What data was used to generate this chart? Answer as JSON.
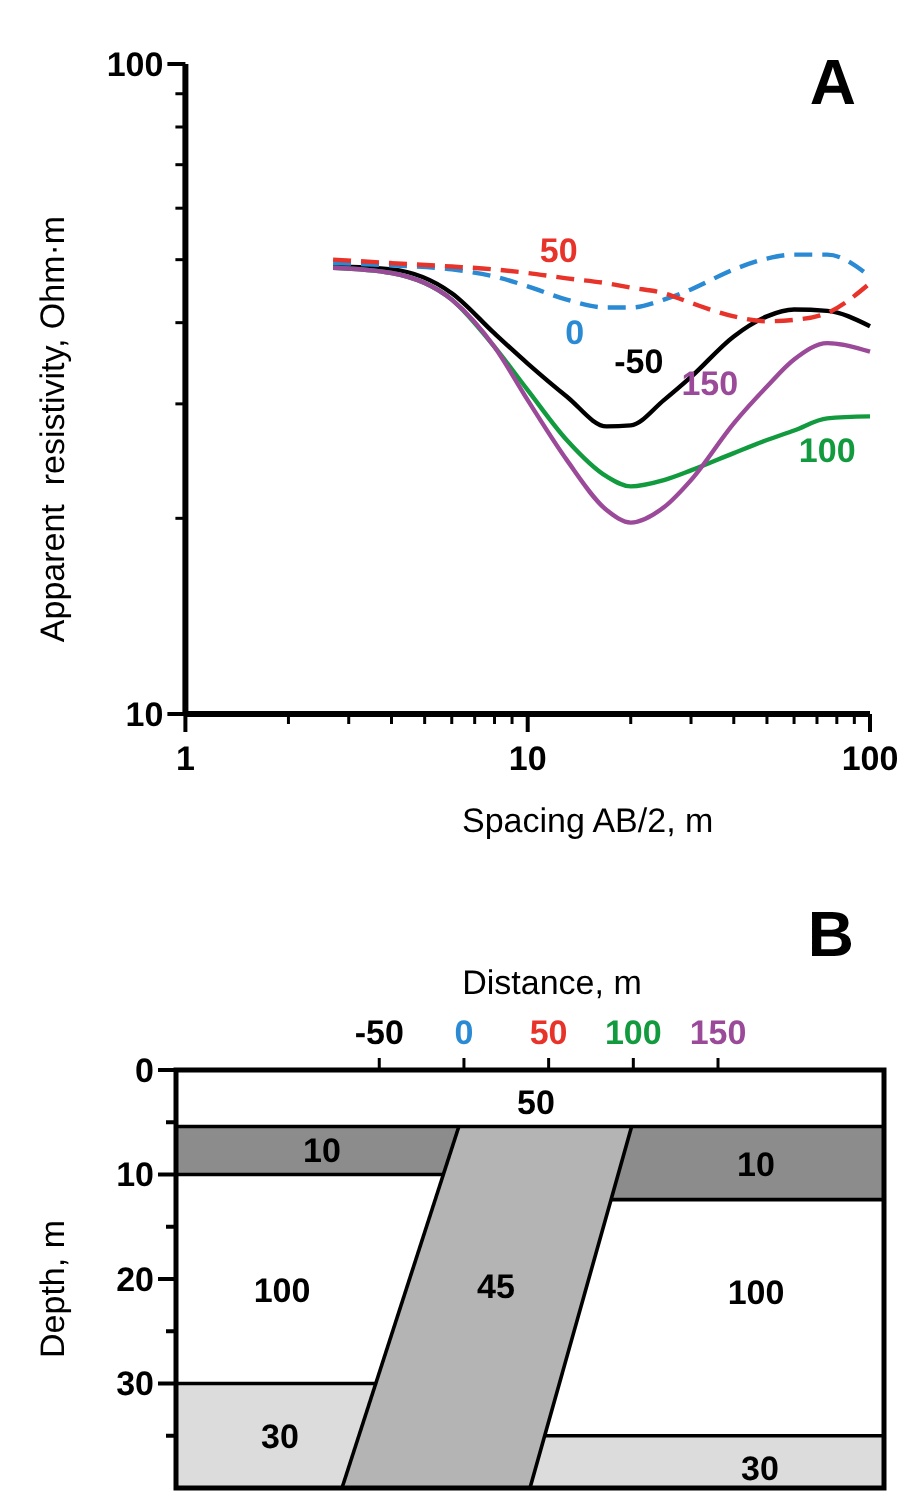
{
  "chart_data": [
    {
      "type": "line",
      "title": "A",
      "xlabel": "Spacing AB/2, m",
      "ylabel": "Apparent  resistivity, Ohm·m",
      "log": "xy",
      "xlim": [
        1,
        100
      ],
      "ylim": [
        10,
        100
      ],
      "xticks": [
        1,
        10,
        100
      ],
      "yticks": [
        10,
        100
      ],
      "grid": false,
      "legend": false,
      "x": [
        2.7,
        4,
        6,
        8,
        10,
        13,
        17,
        20,
        25,
        30,
        40,
        50,
        60,
        75,
        100
      ],
      "series": [
        {
          "name": "-50",
          "color": "#000000",
          "line_style": "solid",
          "values": [
            48.8,
            48.3,
            44.4,
            38.5,
            34.6,
            30.8,
            27.7,
            27.8,
            30.4,
            33.0,
            38.1,
            40.9,
            41.9,
            41.7,
            39.5
          ]
        },
        {
          "name": "0",
          "color": "#2a8ad4",
          "line_style": "dashed",
          "values": [
            49.4,
            49.0,
            48.3,
            47.1,
            45.5,
            43.4,
            42.2,
            42.2,
            43.4,
            45.0,
            48.3,
            50.2,
            50.9,
            50.9,
            47.1
          ]
        },
        {
          "name": "50",
          "color": "#e8332a",
          "line_style": "dashed",
          "values": [
            50.0,
            49.4,
            48.8,
            48.3,
            47.7,
            46.8,
            46.0,
            45.3,
            44.4,
            42.9,
            40.9,
            40.2,
            40.4,
            41.4,
            46.0
          ]
        },
        {
          "name": "100",
          "color": "#129a3e",
          "line_style": "solid",
          "values": [
            48.6,
            47.7,
            43.4,
            36.7,
            31.5,
            26.4,
            23.2,
            22.4,
            22.9,
            23.7,
            25.2,
            26.4,
            27.3,
            28.5,
            28.7
          ]
        },
        {
          "name": "150",
          "color": "#9b4a9a",
          "line_style": "solid",
          "values": [
            48.6,
            47.7,
            43.4,
            36.7,
            30.4,
            24.6,
            20.6,
            19.7,
            20.8,
            22.9,
            28.0,
            31.9,
            35.1,
            37.2,
            36.1
          ]
        }
      ]
    },
    {
      "type": "line",
      "title": "B",
      "xlabel": "Distance, m",
      "ylabel": "Depth, m",
      "xlim": [
        -170,
        248
      ],
      "xticks": [
        -50,
        0,
        50,
        100,
        150
      ],
      "ylim": [
        40,
        0
      ],
      "line_style": "solid",
      "series": [
        {
          "color": "#000000",
          "x": [
            -170,
            248
          ],
          "values": [
            5.4,
            5.4
          ]
        },
        {
          "color": "#000000",
          "x": [
            -170,
            -12
          ],
          "values": [
            10,
            10
          ]
        },
        {
          "color": "#000000",
          "x": [
            87,
            248
          ],
          "values": [
            12.4,
            12.4
          ]
        },
        {
          "color": "#000000",
          "x": [
            -170,
            -52
          ],
          "values": [
            30,
            30
          ]
        },
        {
          "color": "#000000",
          "x": [
            48,
            248
          ],
          "values": [
            35,
            35
          ]
        },
        {
          "color": "#000000",
          "x": [
            -3,
            -72
          ],
          "values": [
            5.4,
            40
          ]
        },
        {
          "color": "#000000",
          "x": [
            99,
            39
          ],
          "values": [
            5.4,
            40
          ]
        }
      ],
      "yticks": [
        0,
        {
          "value": 5,
          "label": null
        },
        10,
        {
          "value": 15,
          "label": null
        },
        20,
        {
          "value": 25,
          "label": null
        },
        30,
        {
          "value": 35,
          "label": null
        }
      ],
      "annotations": [
        "50",
        "10",
        "10",
        "100",
        "45",
        "100",
        "30",
        "30"
      ]
    }
  ]
}
